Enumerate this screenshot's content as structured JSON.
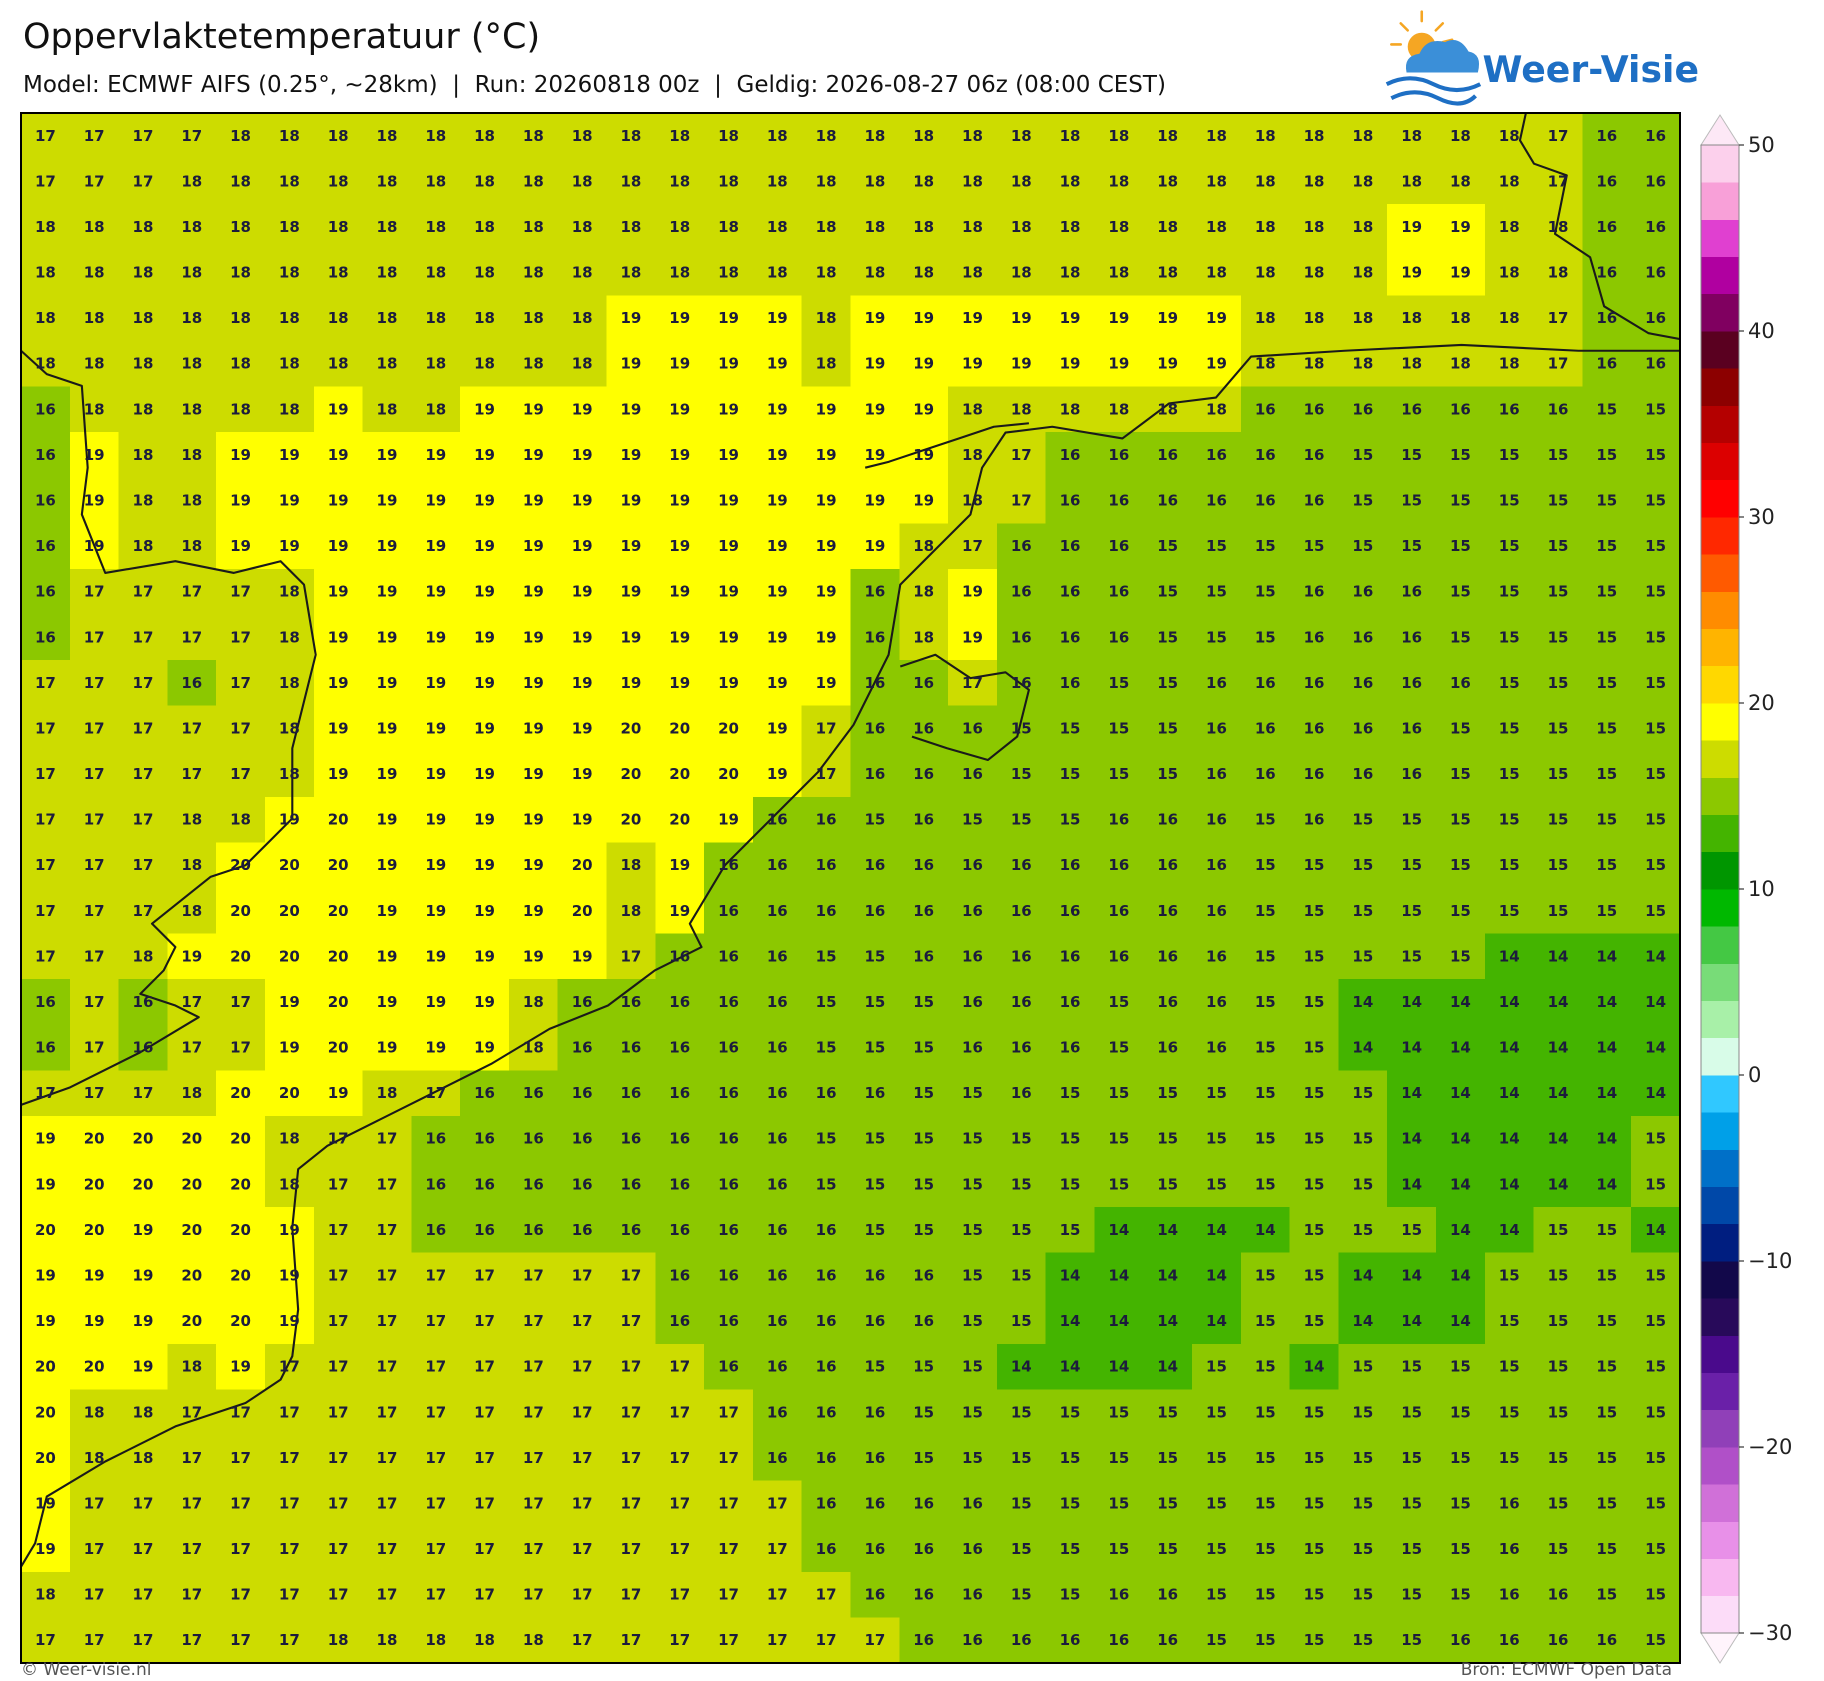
{
  "header": {
    "title": "Oppervlaktetemperatuur (°C)",
    "subtitle": "Model: ECMWF AIFS (0.25°, ~28km)  |  Run: 20260818 00z  |  Geldig: 2026-08-27 06z (08:00 CEST)"
  },
  "logo": {
    "text": "Weer-Visie"
  },
  "map": {
    "values": [
      [
        17,
        17,
        17,
        17,
        18,
        18,
        18,
        18,
        18,
        18,
        18,
        18,
        18,
        18,
        18,
        18,
        18,
        18,
        18,
        18,
        18,
        18,
        18,
        18,
        18,
        18,
        18,
        18,
        18,
        18,
        18,
        17,
        16,
        16
      ],
      [
        17,
        17,
        17,
        18,
        18,
        18,
        18,
        18,
        18,
        18,
        18,
        18,
        18,
        18,
        18,
        18,
        18,
        18,
        18,
        18,
        18,
        18,
        18,
        18,
        18,
        18,
        18,
        18,
        18,
        18,
        18,
        17,
        16,
        16
      ],
      [
        18,
        18,
        18,
        18,
        18,
        18,
        18,
        18,
        18,
        18,
        18,
        18,
        18,
        18,
        18,
        18,
        18,
        18,
        18,
        18,
        18,
        18,
        18,
        18,
        18,
        18,
        18,
        18,
        19,
        19,
        18,
        18,
        16,
        16
      ],
      [
        18,
        18,
        18,
        18,
        18,
        18,
        18,
        18,
        18,
        18,
        18,
        18,
        18,
        18,
        18,
        18,
        18,
        18,
        18,
        18,
        18,
        18,
        18,
        18,
        18,
        18,
        18,
        18,
        19,
        19,
        18,
        18,
        16,
        16
      ],
      [
        18,
        18,
        18,
        18,
        18,
        18,
        18,
        18,
        18,
        18,
        18,
        18,
        19,
        19,
        19,
        19,
        18,
        19,
        19,
        19,
        19,
        19,
        19,
        19,
        19,
        18,
        18,
        18,
        18,
        18,
        18,
        17,
        16,
        16
      ],
      [
        18,
        18,
        18,
        18,
        18,
        18,
        18,
        18,
        18,
        18,
        18,
        18,
        19,
        19,
        19,
        19,
        18,
        19,
        19,
        19,
        19,
        19,
        19,
        19,
        19,
        18,
        18,
        18,
        18,
        18,
        18,
        17,
        16,
        16
      ],
      [
        16,
        18,
        18,
        18,
        18,
        18,
        19,
        18,
        18,
        19,
        19,
        19,
        19,
        19,
        19,
        19,
        19,
        19,
        19,
        18,
        18,
        18,
        18,
        18,
        18,
        16,
        16,
        16,
        16,
        16,
        16,
        16,
        15,
        15
      ],
      [
        16,
        19,
        18,
        18,
        19,
        19,
        19,
        19,
        19,
        19,
        19,
        19,
        19,
        19,
        19,
        19,
        19,
        19,
        19,
        18,
        17,
        16,
        16,
        16,
        16,
        16,
        16,
        15,
        15,
        15,
        15,
        15,
        15,
        15
      ],
      [
        16,
        19,
        18,
        18,
        19,
        19,
        19,
        19,
        19,
        19,
        19,
        19,
        19,
        19,
        19,
        19,
        19,
        19,
        19,
        18,
        17,
        16,
        16,
        16,
        16,
        16,
        16,
        15,
        15,
        15,
        15,
        15,
        15,
        15
      ],
      [
        16,
        19,
        18,
        18,
        19,
        19,
        19,
        19,
        19,
        19,
        19,
        19,
        19,
        19,
        19,
        19,
        19,
        19,
        18,
        17,
        16,
        16,
        16,
        15,
        15,
        15,
        15,
        15,
        15,
        15,
        15,
        15,
        15,
        15
      ],
      [
        16,
        17,
        17,
        17,
        17,
        18,
        19,
        19,
        19,
        19,
        19,
        19,
        19,
        19,
        19,
        19,
        19,
        16,
        18,
        19,
        16,
        16,
        16,
        15,
        15,
        15,
        16,
        16,
        16,
        15,
        15,
        15,
        15,
        15
      ],
      [
        16,
        17,
        17,
        17,
        17,
        18,
        19,
        19,
        19,
        19,
        19,
        19,
        19,
        19,
        19,
        19,
        19,
        16,
        18,
        19,
        16,
        16,
        16,
        15,
        15,
        15,
        16,
        16,
        16,
        15,
        15,
        15,
        15,
        15
      ],
      [
        17,
        17,
        17,
        16,
        17,
        18,
        19,
        19,
        19,
        19,
        19,
        19,
        19,
        19,
        19,
        19,
        19,
        16,
        16,
        17,
        16,
        16,
        15,
        15,
        16,
        16,
        16,
        16,
        16,
        16,
        15,
        15,
        15,
        15
      ],
      [
        17,
        17,
        17,
        17,
        17,
        18,
        19,
        19,
        19,
        19,
        19,
        19,
        20,
        20,
        20,
        19,
        17,
        16,
        16,
        16,
        15,
        15,
        15,
        15,
        16,
        16,
        16,
        16,
        16,
        15,
        15,
        15,
        15,
        15
      ],
      [
        17,
        17,
        17,
        17,
        17,
        18,
        19,
        19,
        19,
        19,
        19,
        19,
        20,
        20,
        20,
        19,
        17,
        16,
        16,
        16,
        15,
        15,
        15,
        15,
        16,
        16,
        16,
        16,
        16,
        15,
        15,
        15,
        15,
        15
      ],
      [
        17,
        17,
        17,
        18,
        18,
        19,
        20,
        19,
        19,
        19,
        19,
        19,
        20,
        20,
        19,
        16,
        16,
        15,
        16,
        15,
        15,
        15,
        16,
        16,
        16,
        15,
        16,
        15,
        15,
        15,
        15,
        15,
        15,
        15
      ],
      [
        17,
        17,
        17,
        18,
        20,
        20,
        20,
        19,
        19,
        19,
        19,
        20,
        18,
        19,
        16,
        16,
        16,
        16,
        16,
        16,
        16,
        16,
        16,
        16,
        16,
        15,
        15,
        15,
        15,
        15,
        15,
        15,
        15,
        15
      ],
      [
        17,
        17,
        17,
        18,
        20,
        20,
        20,
        19,
        19,
        19,
        19,
        20,
        18,
        19,
        16,
        16,
        16,
        16,
        16,
        16,
        16,
        16,
        16,
        16,
        16,
        15,
        15,
        15,
        15,
        15,
        15,
        15,
        15,
        15
      ],
      [
        17,
        17,
        18,
        19,
        20,
        20,
        20,
        19,
        19,
        19,
        19,
        19,
        17,
        16,
        16,
        16,
        15,
        15,
        16,
        16,
        16,
        16,
        16,
        16,
        16,
        15,
        15,
        15,
        15,
        15,
        14,
        14,
        14,
        14
      ],
      [
        16,
        17,
        16,
        17,
        17,
        19,
        20,
        19,
        19,
        19,
        18,
        16,
        16,
        16,
        16,
        16,
        15,
        15,
        15,
        16,
        16,
        16,
        15,
        16,
        16,
        15,
        15,
        14,
        14,
        14,
        14,
        14,
        14,
        14
      ],
      [
        16,
        17,
        16,
        17,
        17,
        19,
        20,
        19,
        19,
        19,
        18,
        16,
        16,
        16,
        16,
        16,
        15,
        15,
        15,
        16,
        16,
        16,
        15,
        16,
        16,
        15,
        15,
        14,
        14,
        14,
        14,
        14,
        14,
        14
      ],
      [
        17,
        17,
        17,
        18,
        20,
        20,
        19,
        18,
        17,
        16,
        16,
        16,
        16,
        16,
        16,
        16,
        16,
        16,
        15,
        15,
        16,
        15,
        15,
        15,
        15,
        15,
        15,
        15,
        14,
        14,
        14,
        14,
        14,
        14
      ],
      [
        19,
        20,
        20,
        20,
        20,
        18,
        17,
        17,
        16,
        16,
        16,
        16,
        16,
        16,
        16,
        16,
        15,
        15,
        15,
        15,
        15,
        15,
        15,
        15,
        15,
        15,
        15,
        15,
        14,
        14,
        14,
        14,
        14,
        15
      ],
      [
        19,
        20,
        20,
        20,
        20,
        18,
        17,
        17,
        16,
        16,
        16,
        16,
        16,
        16,
        16,
        16,
        15,
        15,
        15,
        15,
        15,
        15,
        15,
        15,
        15,
        15,
        15,
        15,
        14,
        14,
        14,
        14,
        14,
        15
      ],
      [
        20,
        20,
        19,
        20,
        20,
        19,
        17,
        17,
        16,
        16,
        16,
        16,
        16,
        16,
        16,
        16,
        16,
        15,
        15,
        15,
        15,
        15,
        14,
        14,
        14,
        14,
        15,
        15,
        15,
        14,
        14,
        15,
        15,
        14
      ],
      [
        19,
        19,
        19,
        20,
        20,
        19,
        17,
        17,
        17,
        17,
        17,
        17,
        17,
        16,
        16,
        16,
        16,
        16,
        16,
        15,
        15,
        14,
        14,
        14,
        14,
        15,
        15,
        14,
        14,
        14,
        15,
        15,
        15,
        15
      ],
      [
        19,
        19,
        19,
        20,
        20,
        19,
        17,
        17,
        17,
        17,
        17,
        17,
        17,
        16,
        16,
        16,
        16,
        16,
        16,
        15,
        15,
        14,
        14,
        14,
        14,
        15,
        15,
        14,
        14,
        14,
        15,
        15,
        15,
        15
      ],
      [
        20,
        20,
        19,
        18,
        19,
        17,
        17,
        17,
        17,
        17,
        17,
        17,
        17,
        17,
        16,
        16,
        16,
        15,
        15,
        15,
        14,
        14,
        14,
        14,
        15,
        15,
        14,
        15,
        15,
        15,
        15,
        15,
        15,
        15
      ],
      [
        20,
        18,
        18,
        17,
        17,
        17,
        17,
        17,
        17,
        17,
        17,
        17,
        17,
        17,
        17,
        16,
        16,
        16,
        15,
        15,
        15,
        15,
        15,
        15,
        15,
        15,
        15,
        15,
        15,
        15,
        15,
        15,
        15,
        15
      ],
      [
        20,
        18,
        18,
        17,
        17,
        17,
        17,
        17,
        17,
        17,
        17,
        17,
        17,
        17,
        17,
        16,
        16,
        16,
        15,
        15,
        15,
        15,
        15,
        15,
        15,
        15,
        15,
        15,
        15,
        15,
        15,
        15,
        15,
        15
      ],
      [
        19,
        17,
        17,
        17,
        17,
        17,
        17,
        17,
        17,
        17,
        17,
        17,
        17,
        17,
        17,
        17,
        16,
        16,
        16,
        16,
        15,
        15,
        15,
        15,
        15,
        15,
        15,
        15,
        15,
        15,
        16,
        15,
        15,
        15
      ],
      [
        19,
        17,
        17,
        17,
        17,
        17,
        17,
        17,
        17,
        17,
        17,
        17,
        17,
        17,
        17,
        17,
        16,
        16,
        16,
        16,
        15,
        15,
        15,
        15,
        15,
        15,
        15,
        15,
        15,
        15,
        16,
        15,
        15,
        15
      ],
      [
        18,
        17,
        17,
        17,
        17,
        17,
        17,
        17,
        17,
        17,
        17,
        17,
        17,
        17,
        17,
        17,
        17,
        16,
        16,
        16,
        15,
        15,
        16,
        16,
        15,
        15,
        15,
        15,
        15,
        15,
        16,
        16,
        15,
        15
      ],
      [
        17,
        17,
        17,
        17,
        17,
        17,
        18,
        18,
        18,
        18,
        18,
        17,
        17,
        17,
        17,
        17,
        17,
        17,
        16,
        16,
        16,
        16,
        16,
        16,
        15,
        15,
        15,
        15,
        15,
        16,
        16,
        16,
        16,
        15
      ]
    ]
  },
  "colorbar": {
    "lim": [
      -30,
      50
    ],
    "ticks": [
      50,
      40,
      30,
      20,
      10,
      0,
      {
        "value": -10,
        "label": "−10"
      },
      {
        "value": -20,
        "label": "−20"
      },
      {
        "value": -30,
        "label": "−30"
      }
    ],
    "colors": [
      "#fcdcf8",
      "#f8b8f0",
      "#e890e8",
      "#d070d8",
      "#b050c8",
      "#9040b8",
      "#6a20a8",
      "#4a0a8c",
      "#280a5a",
      "#12084a",
      "#001e80",
      "#0048a8",
      "#0070c8",
      "#00a0e8",
      "#30c8ff",
      "#d8fce8",
      "#a8f0a8",
      "#78dc78",
      "#44c844",
      "#00b800",
      "#009600",
      "#44b400",
      "#8cc800",
      "#cddc00",
      "#ffff00",
      "#ffd800",
      "#ffb400",
      "#ff8c00",
      "#ff5a00",
      "#ff2800",
      "#ff0000",
      "#dc0000",
      "#b40000",
      "#8c0000",
      "#5a0020",
      "#800060",
      "#b000a0",
      "#e040d0",
      "#f8a0d8",
      "#fcd0ec"
    ],
    "under": "#fff4fc",
    "over": "#fde8f6"
  },
  "footer": {
    "left": "© Weer-visie.nl",
    "right": "Bron: ECMWF Open Data"
  }
}
